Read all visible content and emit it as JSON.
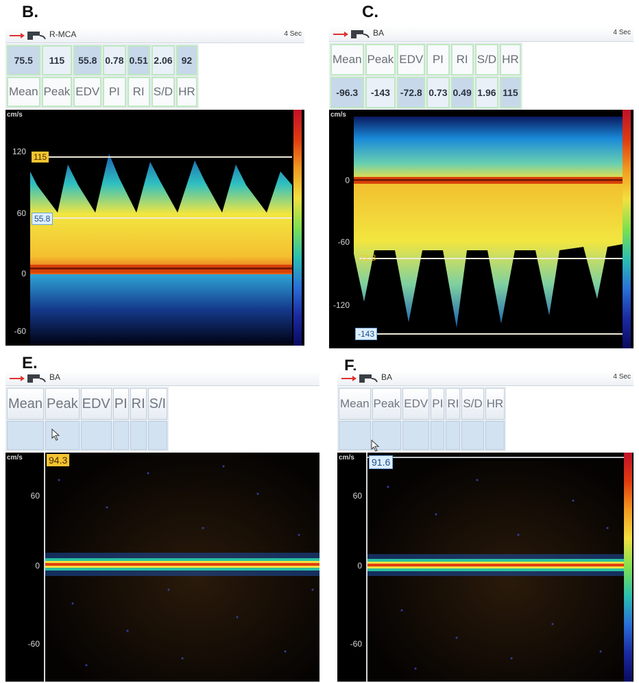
{
  "panels": {
    "B": {
      "letter": "B.",
      "vessel": "R-MCA",
      "time": "4 Sec",
      "values": [
        "75.5",
        "115",
        "55.8",
        "0.78",
        "0.51",
        "2.06",
        "92"
      ],
      "labels": [
        "Mean",
        "Peak",
        "EDV",
        "PI",
        "RI",
        "S/D",
        "HR"
      ],
      "unit": "cm/s",
      "ticks": [
        "120",
        "60",
        "0",
        "-60"
      ],
      "markers": [
        "115",
        "55.8"
      ]
    },
    "C": {
      "letter": "C.",
      "vessel": "BA",
      "time": "4 Sec",
      "labels": [
        "Mean",
        "Peak",
        "EDV",
        "PI",
        "RI",
        "S/D",
        "HR"
      ],
      "values": [
        "-96.3",
        "-143",
        "-72.8",
        "0.73",
        "0.49",
        "1.96",
        "115"
      ],
      "unit": "cm/s",
      "ticks": [
        "0",
        "-60",
        "-120"
      ],
      "markers": [
        "-72.8",
        "-143"
      ]
    },
    "E": {
      "letter": "E.",
      "vessel": "BA",
      "labels": [
        "Mean",
        "Peak",
        "EDV",
        "PI",
        "RI",
        "S/I"
      ],
      "unit": "cm/s",
      "ticks": [
        "60",
        "0",
        "-60"
      ],
      "markers": [
        "94.3"
      ]
    },
    "F": {
      "letter": "F.",
      "vessel": "BA",
      "time": "4 Sec",
      "labels": [
        "Mean",
        "Peak",
        "EDV",
        "PI",
        "RI",
        "S/D",
        "HR"
      ],
      "unit": "cm/s",
      "ticks": [
        "60",
        "0",
        "-60"
      ],
      "markers": [
        "91.6"
      ]
    }
  },
  "colors": {
    "spectrum_bg": "#000000",
    "marker_yellow": "#f4c430",
    "marker_blue": "#ddeeff"
  }
}
